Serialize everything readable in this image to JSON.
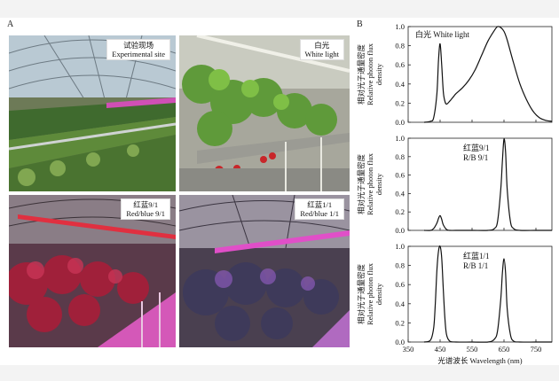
{
  "panel_a": {
    "letter": "A",
    "photos": [
      {
        "label_cn": "试验现场",
        "label_en": "Experimental site"
      },
      {
        "label_cn": "白光",
        "label_en": "White light"
      },
      {
        "label_cn": "红蓝9/1",
        "label_en": "Red/blue 9/1"
      },
      {
        "label_cn": "红蓝1/1",
        "label_en": "Red/blue 1/1"
      }
    ]
  },
  "panel_b": {
    "letter": "B",
    "ylabel_cn": "相对光子通量密度",
    "ylabel_en": "Relative photon flux density",
    "xlabel": "光谱波长 Wavelength (nm)"
  },
  "chart_data": [
    {
      "type": "line",
      "legend": "白光 White light",
      "x": [
        400,
        420,
        430,
        440,
        445,
        450,
        455,
        460,
        465,
        470,
        480,
        490,
        500,
        520,
        540,
        560,
        580,
        600,
        620,
        630,
        640,
        650,
        660,
        680,
        700,
        720,
        740,
        760,
        780,
        800
      ],
      "y": [
        0.0,
        0.01,
        0.05,
        0.3,
        0.65,
        0.82,
        0.6,
        0.32,
        0.22,
        0.19,
        0.22,
        0.26,
        0.3,
        0.36,
        0.44,
        0.55,
        0.7,
        0.85,
        0.96,
        1.0,
        0.99,
        0.95,
        0.86,
        0.62,
        0.4,
        0.24,
        0.12,
        0.05,
        0.02,
        0.01
      ],
      "xlim": [
        350,
        800
      ],
      "ylim": [
        0,
        1.0
      ],
      "yticks": [
        "0.0",
        "0.2",
        "0.4",
        "0.6",
        "0.8",
        "1.0"
      ]
    },
    {
      "type": "line",
      "legend": "红蓝9/1\nR/B 9/1",
      "x": [
        400,
        420,
        430,
        440,
        445,
        450,
        455,
        460,
        470,
        480,
        500,
        550,
        600,
        620,
        630,
        640,
        645,
        650,
        655,
        660,
        670,
        680,
        700,
        750,
        800
      ],
      "y": [
        0.0,
        0.0,
        0.02,
        0.08,
        0.13,
        0.16,
        0.12,
        0.06,
        0.01,
        0.0,
        0.0,
        0.0,
        0.0,
        0.02,
        0.1,
        0.45,
        0.75,
        0.99,
        0.85,
        0.45,
        0.1,
        0.02,
        0.0,
        0.0,
        0.0
      ],
      "xlim": [
        350,
        800
      ],
      "ylim": [
        0,
        1.0
      ],
      "yticks": [
        "0.0",
        "0.2",
        "0.4",
        "0.6",
        "0.8",
        "1.0"
      ]
    },
    {
      "type": "line",
      "legend": "红蓝1/1\nR/B 1/1",
      "x": [
        400,
        420,
        430,
        435,
        440,
        445,
        450,
        455,
        460,
        465,
        470,
        480,
        500,
        550,
        600,
        620,
        630,
        640,
        645,
        650,
        655,
        660,
        670,
        680,
        700,
        750,
        800
      ],
      "y": [
        0.0,
        0.02,
        0.15,
        0.4,
        0.75,
        0.95,
        1.0,
        0.88,
        0.55,
        0.25,
        0.08,
        0.01,
        0.0,
        0.0,
        0.0,
        0.03,
        0.12,
        0.45,
        0.72,
        0.87,
        0.72,
        0.35,
        0.08,
        0.01,
        0.0,
        0.0,
        0.0
      ],
      "xlim": [
        350,
        800
      ],
      "ylim": [
        0,
        1.0
      ],
      "yticks": [
        "0.0",
        "0.2",
        "0.4",
        "0.6",
        "0.8",
        "1.0"
      ],
      "xticks": [
        "350",
        "450",
        "550",
        "650",
        "750"
      ]
    }
  ]
}
